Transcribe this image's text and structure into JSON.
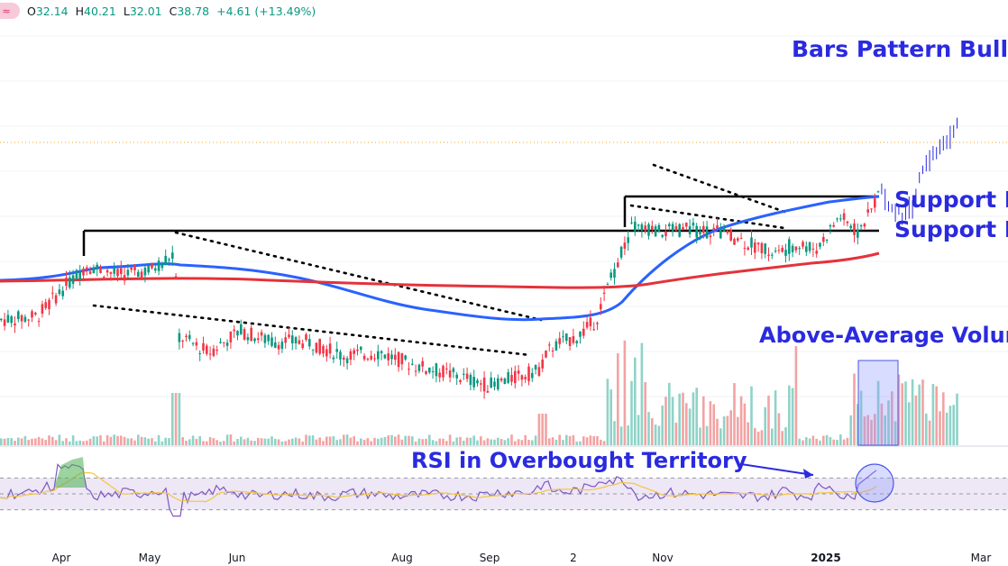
{
  "header": {
    "badge_icon": "approx-wave-icon",
    "open_label": "O",
    "open": "32.14",
    "high_label": "H",
    "high": "40.21",
    "low_label": "L",
    "low": "32.01",
    "close_label": "C",
    "close": "38.78",
    "change": "+4.61 (+13.49%)"
  },
  "annotations": {
    "bars_pattern": "Bars Pattern Bullish",
    "support_1": "Support Le",
    "support_2": "Support Le",
    "volume": "Above-Average Volume",
    "rsi": "RSI in Overbought Territory"
  },
  "colors": {
    "up": "#089981",
    "down": "#f23645",
    "vol_up": "#8fd3c7",
    "vol_down": "#f2a3a3",
    "ma_short": "#2962ff",
    "ma_long": "#e5323b",
    "annotation": "#2a2ae0",
    "rsi_line": "#7e57c2",
    "rsi_ma": "#f5c542",
    "rsi_band": "#ede7f6"
  },
  "chart_data": {
    "type": "candlestick",
    "x_axis": {
      "ticks": [
        "Apr",
        "May",
        "Jun",
        "Aug",
        "Sep",
        "2",
        "Nov",
        "2025",
        "Mar"
      ],
      "bold_ticks": [
        "2025"
      ]
    },
    "price_range": [
      12.0,
      45.0
    ],
    "last_close": 38.78,
    "support_levels": [
      24.0,
      27.3
    ],
    "series": [
      {
        "name": "",
        "kind": "moving-average-short",
        "color": "#2962ff"
      },
      {
        "name": "",
        "kind": "moving-average-long",
        "color": "#e5323b"
      }
    ],
    "rsi": {
      "range": [
        0,
        100
      ],
      "overbought": 70,
      "midline": 50,
      "oversold": 30
    }
  }
}
